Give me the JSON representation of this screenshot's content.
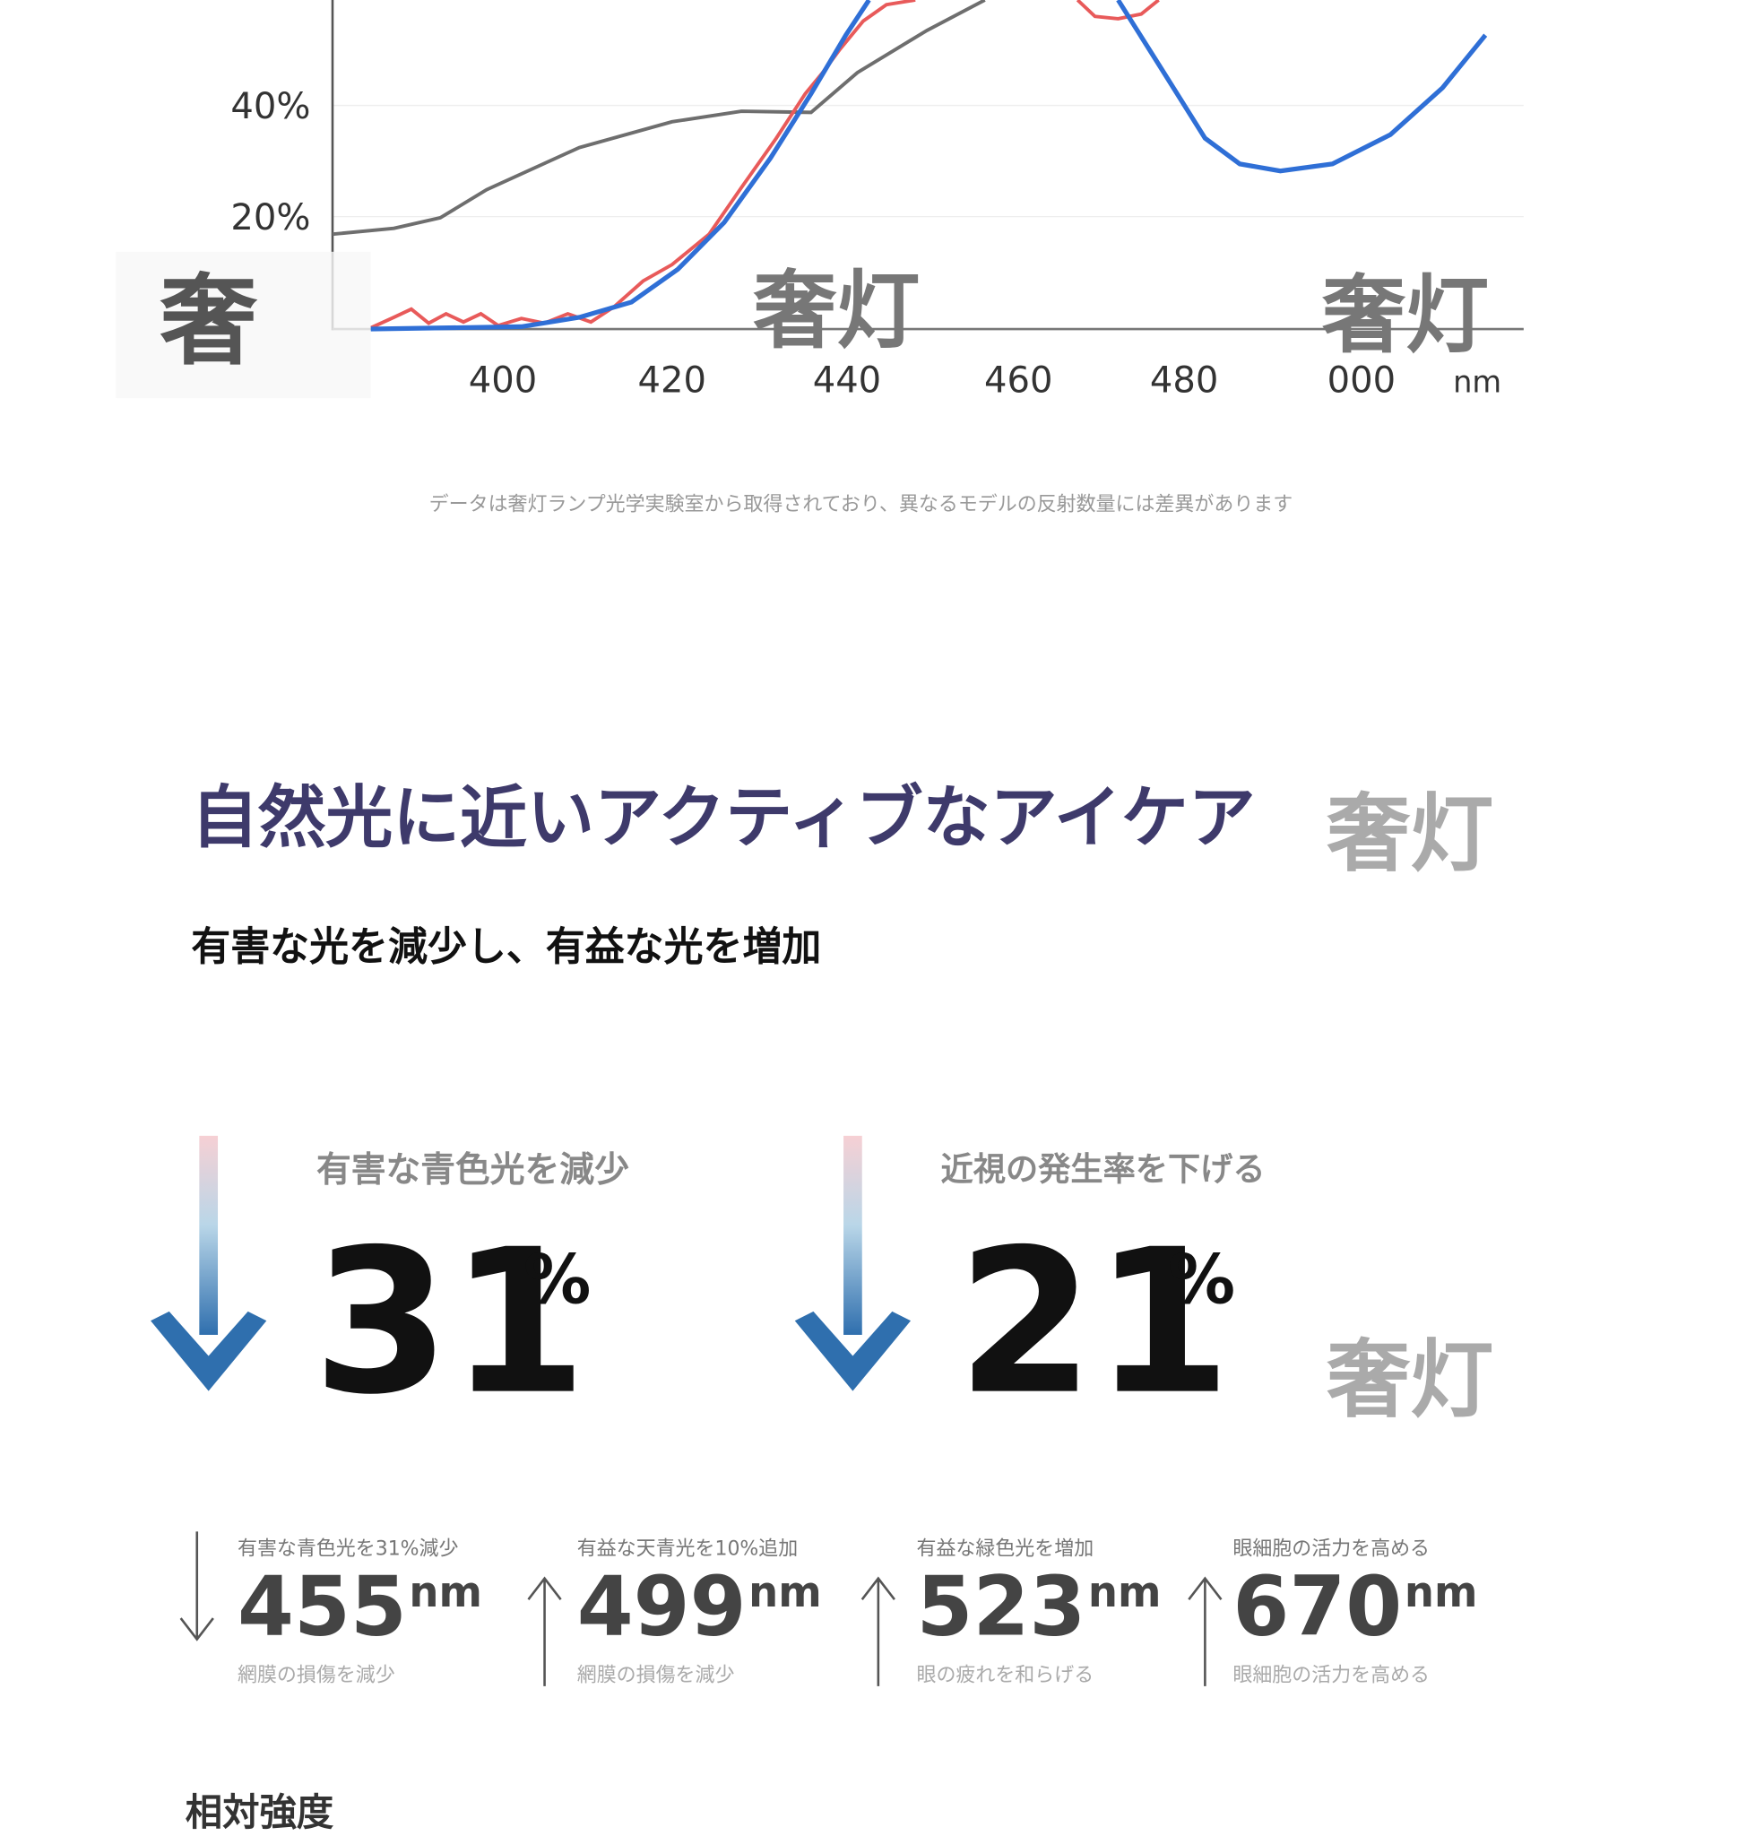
{
  "chart": {
    "yticks": [
      "40%",
      "20%"
    ],
    "xticks": [
      "400",
      "420",
      "440",
      "460",
      "480",
      "000",
      "nm"
    ]
  },
  "watermarks": [
    "奢",
    "奢灯",
    "奢灯",
    "奢灯",
    "奢灯"
  ],
  "note": "データは奢灯ランプ光学実験室から取得されており、異なるモデルの反射数量には差異があります",
  "section": {
    "title": "自然光に近いアクティブなアイケア",
    "subtitle": "有害な光を減少し、有益な光を増加"
  },
  "stats": [
    {
      "label": "有害な青色光を減少",
      "value": "31",
      "unit": "%"
    },
    {
      "label": "近視の発生率を下げる",
      "value": "21",
      "unit": "%"
    }
  ],
  "wavelengths": [
    {
      "caption": "有害な青色光を31%減少",
      "value": "455",
      "unit": "nm",
      "note": "網膜の損傷を減少"
    },
    {
      "caption": "有益な天青光を10%追加",
      "value": "499",
      "unit": "nm",
      "note": "網膜の損傷を減少"
    },
    {
      "caption": "有益な緑色光を増加",
      "value": "523",
      "unit": "nm",
      "note": "眼の疲れを和らげる"
    },
    {
      "caption": "眼細胞の活力を高める",
      "value": "670",
      "unit": "nm",
      "note": "眼細胞の活力を高める"
    }
  ],
  "footer": "相対強度"
}
